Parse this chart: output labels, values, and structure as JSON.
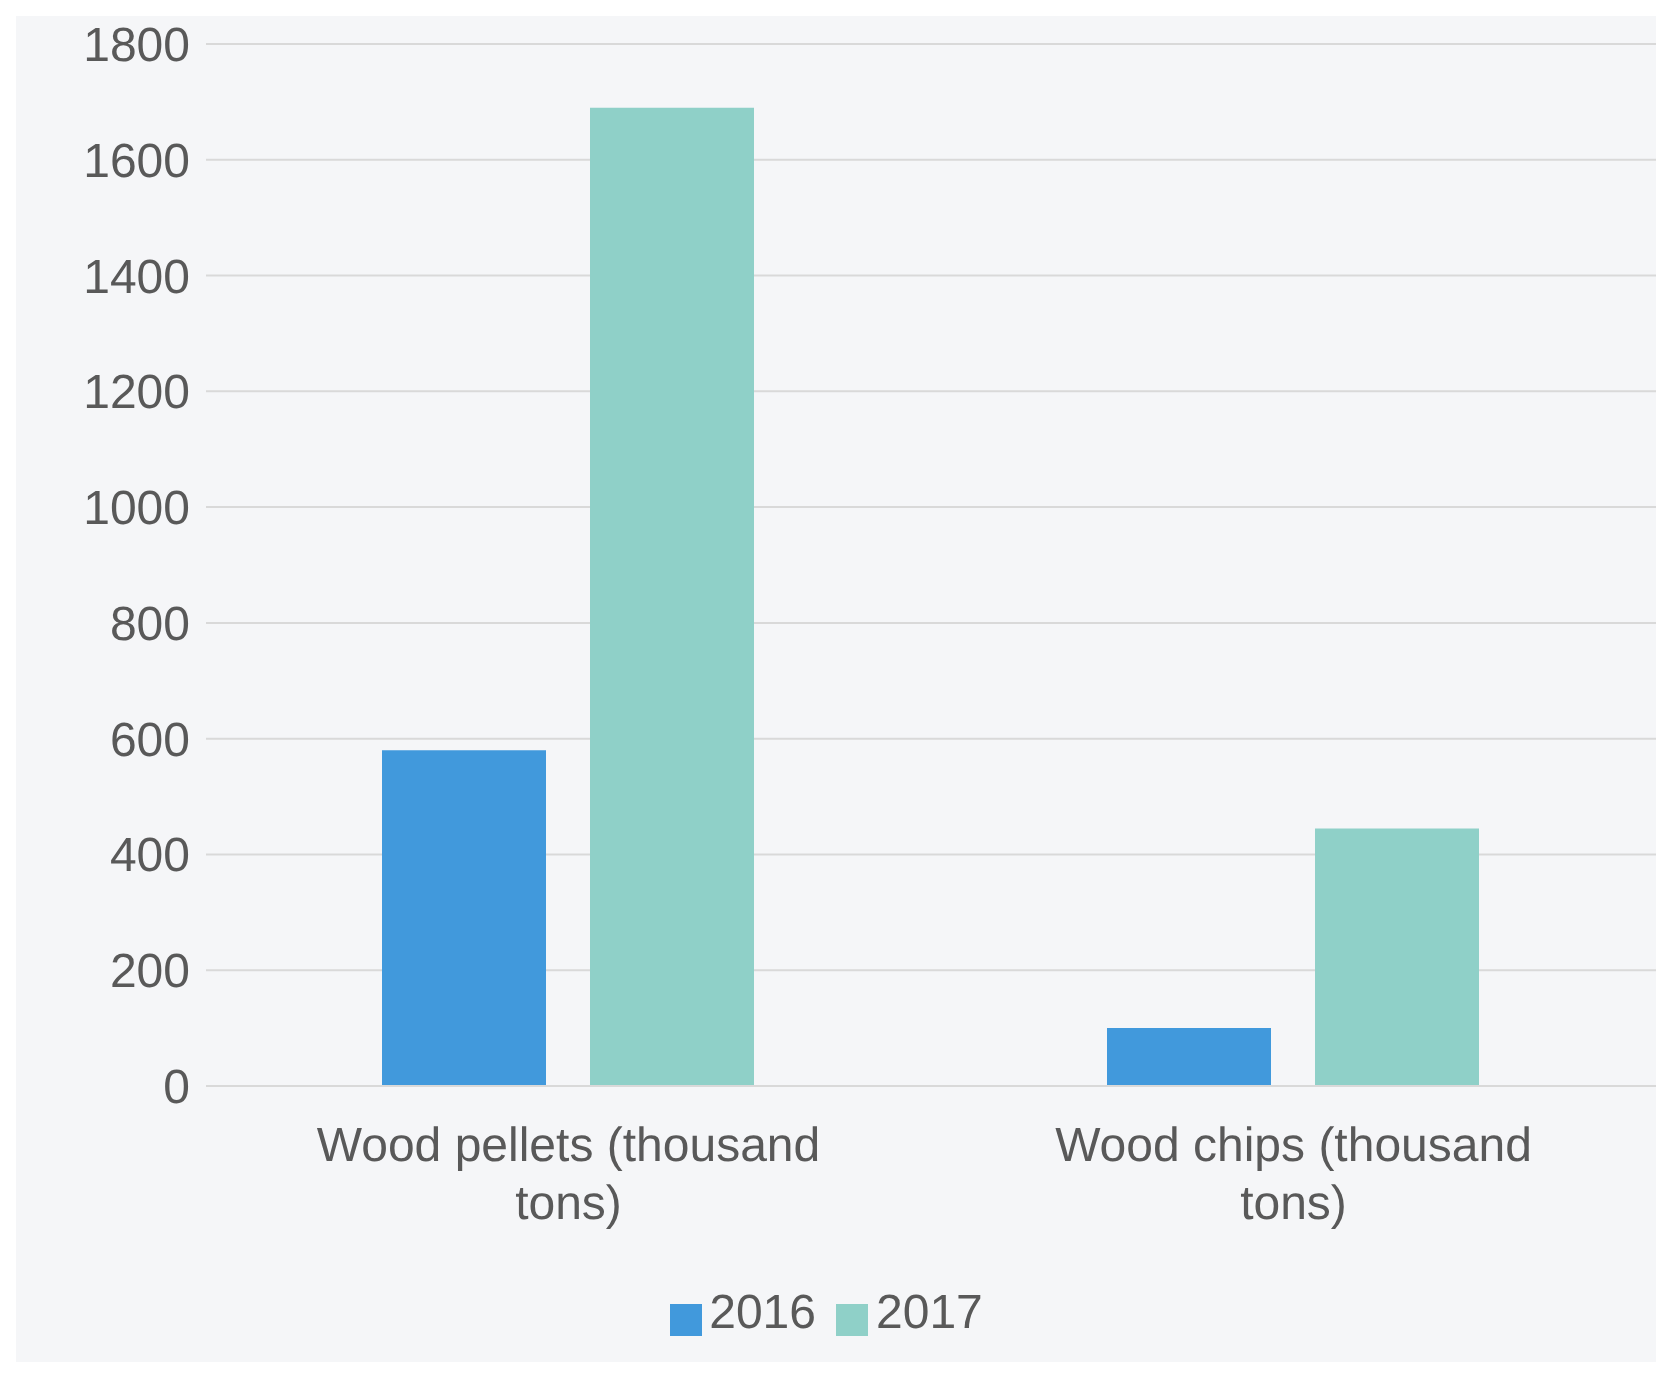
{
  "chart_data": {
    "type": "bar",
    "categories": [
      "Wood pellets (thousand tons)",
      "Wood chips (thousand tons)"
    ],
    "series": [
      {
        "name": "2016",
        "color": "#4199dc",
        "values": [
          580,
          100
        ]
      },
      {
        "name": "2017",
        "color": "#8fd0c8",
        "values": [
          1690,
          445
        ]
      }
    ],
    "ylim": [
      0,
      1800
    ],
    "yticks": [
      0,
      200,
      400,
      600,
      800,
      1000,
      1200,
      1400,
      1600,
      1800
    ],
    "grid": "y",
    "legend": "bottom"
  }
}
